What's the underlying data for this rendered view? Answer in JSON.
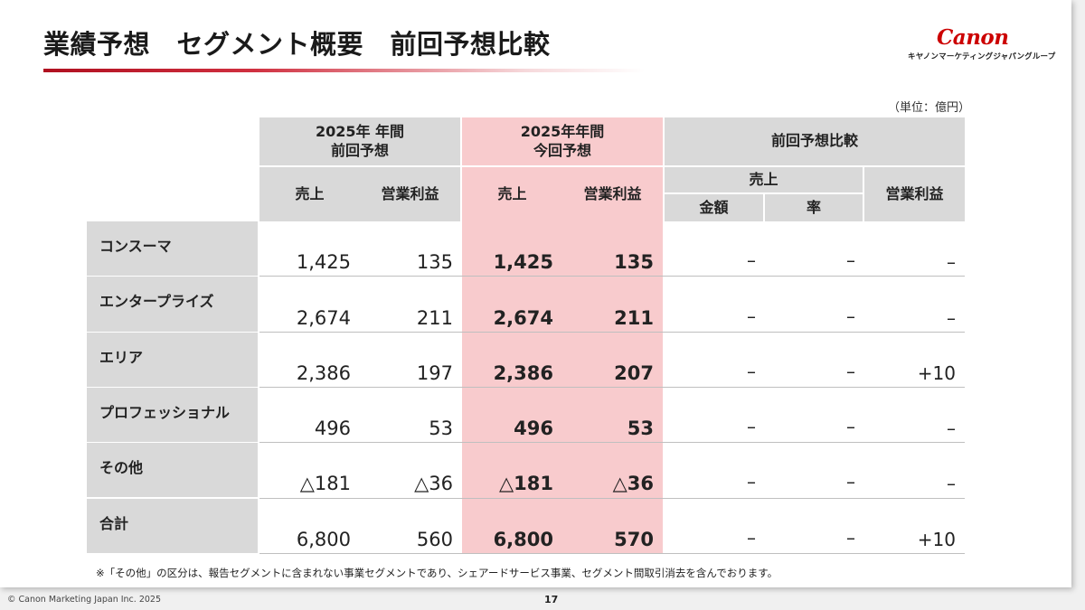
{
  "header": {
    "title": "業績予想　セグメント概要　前回予想比較",
    "logo_text": "Canon",
    "logo_sub": "キヤノンマーケティングジャパングループ",
    "accent_color": "#cc0000"
  },
  "unit_label": "（単位：億円）",
  "table": {
    "col_groups": {
      "prev": "2025年 年間\n前回予想",
      "curr": "2025年年間\n今回予想",
      "compare": "前回予想比較"
    },
    "sub_headers": {
      "sales": "売上",
      "op_profit": "営業利益",
      "compare_sales": "売上",
      "amount": "金額",
      "rate": "率",
      "compare_op": "営業利益"
    },
    "rows": [
      {
        "label": "コンスーマ",
        "prev_sales": "1,425",
        "prev_op": "135",
        "curr_sales": "1,425",
        "curr_op": "135",
        "amount": "–",
        "rate": "–",
        "op_diff": "–"
      },
      {
        "label": "エンタープライズ",
        "prev_sales": "2,674",
        "prev_op": "211",
        "curr_sales": "2,674",
        "curr_op": "211",
        "amount": "–",
        "rate": "–",
        "op_diff": "–"
      },
      {
        "label": "エリア",
        "prev_sales": "2,386",
        "prev_op": "197",
        "curr_sales": "2,386",
        "curr_op": "207",
        "amount": "–",
        "rate": "–",
        "op_diff": "+10"
      },
      {
        "label": "プロフェッショナル",
        "prev_sales": "496",
        "prev_op": "53",
        "curr_sales": "496",
        "curr_op": "53",
        "amount": "–",
        "rate": "–",
        "op_diff": "–"
      },
      {
        "label": "その他",
        "prev_sales": "△181",
        "prev_op": "△36",
        "curr_sales": "△181",
        "curr_op": "△36",
        "amount": "–",
        "rate": "–",
        "op_diff": "–"
      },
      {
        "label": "合計",
        "prev_sales": "6,800",
        "prev_op": "560",
        "curr_sales": "6,800",
        "curr_op": "570",
        "amount": "–",
        "rate": "–",
        "op_diff": "+10"
      }
    ]
  },
  "footnote": "※「その他」の区分は、報告セグメントに含まれない事業セグメントであり、シェアードサービス事業、セグメント間取引消去を含んでおります。",
  "footer": {
    "copyright": "© Canon Marketing Japan Inc. 2025",
    "page_number": "17"
  }
}
